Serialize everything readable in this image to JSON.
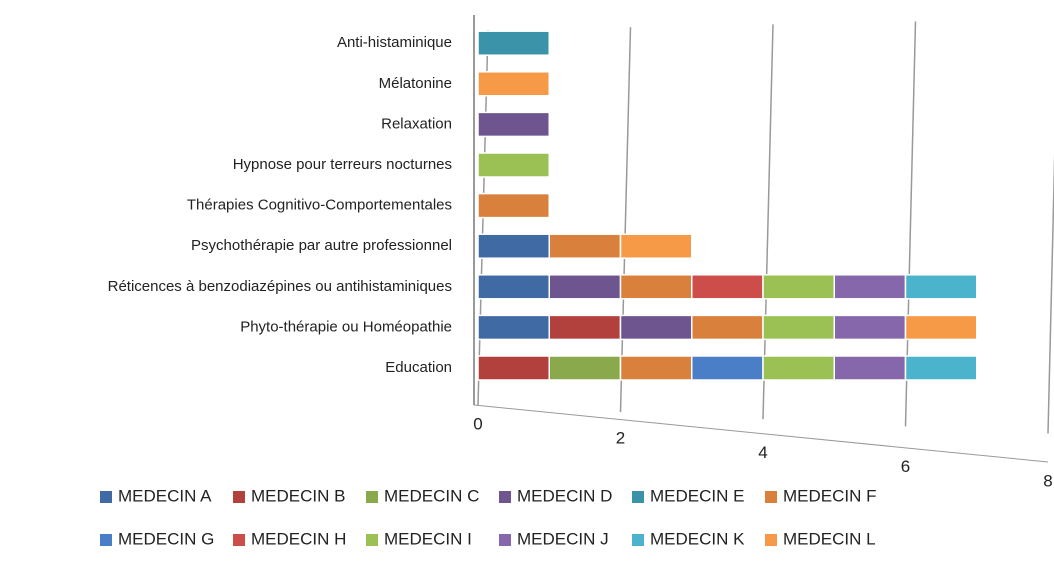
{
  "chart_data": {
    "type": "bar",
    "orientation": "horizontal",
    "stacked": true,
    "categories": [
      "Education",
      "Phyto-thérapie ou Homéopathie",
      "Réticences à benzodiazépines ou antihistaminiques",
      "Psychothérapie par autre professionnel",
      "Thérapies Cognitivo-Comportementales",
      "Hypnose pour terreurs nocturnes",
      "Relaxation",
      "Mélatonine",
      "Anti-histaminique"
    ],
    "series": [
      {
        "name": "MEDECIN A",
        "color": "#3f6aa3",
        "values": [
          0,
          1,
          1,
          1,
          0,
          0,
          0,
          0,
          0
        ]
      },
      {
        "name": "MEDECIN B",
        "color": "#b2403d",
        "values": [
          1,
          1,
          0,
          0,
          0,
          0,
          0,
          0,
          0
        ]
      },
      {
        "name": "MEDECIN C",
        "color": "#8aa84c",
        "values": [
          1,
          0,
          0,
          0,
          0,
          0,
          0,
          0,
          0
        ]
      },
      {
        "name": "MEDECIN D",
        "color": "#6e5590",
        "values": [
          0,
          1,
          1,
          0,
          0,
          0,
          1,
          0,
          0
        ]
      },
      {
        "name": "MEDECIN E",
        "color": "#3a93a8",
        "values": [
          0,
          0,
          0,
          0,
          0,
          0,
          0,
          0,
          1
        ]
      },
      {
        "name": "MEDECIN F",
        "color": "#d9803c",
        "values": [
          1,
          1,
          1,
          1,
          1,
          0,
          0,
          0,
          0
        ]
      },
      {
        "name": "MEDECIN G",
        "color": "#4a7fc8",
        "values": [
          1,
          0,
          0,
          0,
          0,
          0,
          0,
          0,
          0
        ]
      },
      {
        "name": "MEDECIN H",
        "color": "#cc4d4a",
        "values": [
          0,
          0,
          1,
          0,
          0,
          0,
          0,
          0,
          0
        ]
      },
      {
        "name": "MEDECIN I",
        "color": "#9bc155",
        "values": [
          1,
          1,
          1,
          0,
          0,
          1,
          0,
          0,
          0
        ]
      },
      {
        "name": "MEDECIN J",
        "color": "#8767ab",
        "values": [
          1,
          1,
          1,
          0,
          0,
          0,
          0,
          0,
          0
        ]
      },
      {
        "name": "MEDECIN K",
        "color": "#4bb3cc",
        "values": [
          1,
          0,
          1,
          0,
          0,
          0,
          0,
          0,
          0
        ]
      },
      {
        "name": "MEDECIN L",
        "color": "#f79a48",
        "values": [
          0,
          1,
          0,
          1,
          0,
          0,
          0,
          1,
          0
        ]
      }
    ],
    "xlim": [
      0,
      8
    ],
    "xticks": [
      0,
      2,
      4,
      6,
      8
    ],
    "grid": true,
    "legend": "bottom"
  }
}
